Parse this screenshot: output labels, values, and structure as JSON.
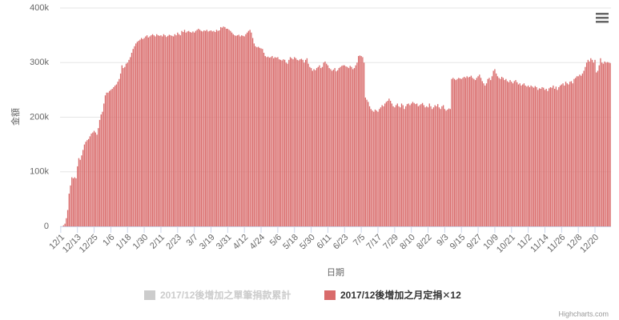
{
  "chart_data": {
    "type": "bar",
    "x_label": "日期",
    "y_label": "金額",
    "credits": "Highcharts.com",
    "grid": true,
    "ylim": [
      0,
      400000
    ],
    "yticks": [
      {
        "value": 0,
        "label": "0"
      },
      {
        "value": 100000,
        "label": "100k"
      },
      {
        "value": 200000,
        "label": "200k"
      },
      {
        "value": 300000,
        "label": "300k"
      },
      {
        "value": 400000,
        "label": "400k"
      }
    ],
    "categories": [
      "12/1",
      null,
      null,
      null,
      null,
      null,
      null,
      null,
      null,
      null,
      null,
      null,
      "12/13",
      null,
      null,
      null,
      null,
      null,
      null,
      null,
      null,
      null,
      null,
      null,
      "12/25",
      null,
      null,
      null,
      null,
      null,
      null,
      null,
      null,
      null,
      null,
      null,
      "1/6",
      null,
      null,
      null,
      null,
      null,
      null,
      null,
      null,
      null,
      null,
      null,
      "1/18",
      null,
      null,
      null,
      null,
      null,
      null,
      null,
      null,
      null,
      null,
      null,
      "1/30",
      null,
      null,
      null,
      null,
      null,
      null,
      null,
      null,
      null,
      null,
      null,
      "2/11",
      null,
      null,
      null,
      null,
      null,
      null,
      null,
      null,
      null,
      null,
      null,
      "2/23",
      null,
      null,
      null,
      null,
      null,
      null,
      null,
      null,
      null,
      null,
      null,
      "3/7",
      null,
      null,
      null,
      null,
      null,
      null,
      null,
      null,
      null,
      null,
      null,
      "3/19",
      null,
      null,
      null,
      null,
      null,
      null,
      null,
      null,
      null,
      null,
      null,
      "3/31",
      null,
      null,
      null,
      null,
      null,
      null,
      null,
      null,
      null,
      null,
      null,
      "4/12",
      null,
      null,
      null,
      null,
      null,
      null,
      null,
      null,
      null,
      null,
      null,
      "4/24",
      null,
      null,
      null,
      null,
      null,
      null,
      null,
      null,
      null,
      null,
      null,
      "5/6",
      null,
      null,
      null,
      null,
      null,
      null,
      null,
      null,
      null,
      null,
      null,
      "5/18",
      null,
      null,
      null,
      null,
      null,
      null,
      null,
      null,
      null,
      null,
      null,
      "5/30",
      null,
      null,
      null,
      null,
      null,
      null,
      null,
      null,
      null,
      null,
      null,
      "6/11",
      null,
      null,
      null,
      null,
      null,
      null,
      null,
      null,
      null,
      null,
      null,
      "6/23",
      null,
      null,
      null,
      null,
      null,
      null,
      null,
      null,
      null,
      null,
      null,
      "7/5",
      null,
      null,
      null,
      null,
      null,
      null,
      null,
      null,
      null,
      null,
      null,
      "7/17",
      null,
      null,
      null,
      null,
      null,
      null,
      null,
      null,
      null,
      null,
      null,
      "7/29",
      null,
      null,
      null,
      null,
      null,
      null,
      null,
      null,
      null,
      null,
      null,
      "8/10",
      null,
      null,
      null,
      null,
      null,
      null,
      null,
      null,
      null,
      null,
      null,
      "8/22",
      null,
      null,
      null,
      null,
      null,
      null,
      null,
      null,
      null,
      null,
      null,
      "9/3",
      null,
      null,
      null,
      null,
      null,
      null,
      null,
      null,
      null,
      null,
      null,
      "9/15",
      null,
      null,
      null,
      null,
      null,
      null,
      null,
      null,
      null,
      null,
      null,
      "9/27",
      null,
      null,
      null,
      null,
      null,
      null,
      null,
      null,
      null,
      null,
      null,
      "10/9",
      null,
      null,
      null,
      null,
      null,
      null,
      null,
      null,
      null,
      null,
      null,
      "10/21",
      null,
      null,
      null,
      null,
      null,
      null,
      null,
      null,
      null,
      null,
      null,
      "11/2",
      null,
      null,
      null,
      null,
      null,
      null,
      null,
      null,
      null,
      null,
      null,
      "11/14",
      null,
      null,
      null,
      null,
      null,
      null,
      null,
      null,
      null,
      null,
      null,
      "11/26",
      null,
      null,
      null,
      null,
      null,
      null,
      null,
      null,
      null,
      null,
      null,
      "12/8",
      null,
      null,
      null,
      null,
      null,
      null,
      null,
      null,
      null,
      null,
      null,
      "12/20",
      null,
      null,
      null,
      null,
      null,
      null,
      null,
      null,
      null,
      null,
      null
    ],
    "series": [
      {
        "name": "2017/12後增加之單筆捐款累計",
        "color": "#cccccc",
        "visible": false
      },
      {
        "name": "2017/12後增加之月定捐✕12",
        "color": "#d96b6b",
        "visible": true,
        "values": [
          0,
          0,
          2000,
          5000,
          15000,
          30000,
          60000,
          75000,
          90000,
          88000,
          90000,
          88000,
          110000,
          125000,
          122000,
          130000,
          140000,
          150000,
          155000,
          158000,
          160000,
          165000,
          170000,
          172000,
          175000,
          172000,
          168000,
          180000,
          195000,
          205000,
          210000,
          225000,
          240000,
          245000,
          245000,
          248000,
          250000,
          252000,
          255000,
          258000,
          260000,
          265000,
          270000,
          280000,
          295000,
          290000,
          292000,
          298000,
          300000,
          305000,
          310000,
          318000,
          325000,
          330000,
          335000,
          338000,
          340000,
          342000,
          345000,
          343000,
          345000,
          348000,
          350000,
          346000,
          348000,
          350000,
          352000,
          350000,
          348000,
          352000,
          350000,
          349000,
          350000,
          348000,
          352000,
          350000,
          347000,
          349000,
          351000,
          350000,
          349000,
          348000,
          352000,
          350000,
          355000,
          352000,
          350000,
          358000,
          356000,
          360000,
          355000,
          357000,
          358000,
          356000,
          355000,
          357000,
          355000,
          358000,
          360000,
          362000,
          360000,
          358000,
          357000,
          359000,
          358000,
          360000,
          357000,
          358000,
          359000,
          357000,
          358000,
          356000,
          360000,
          358000,
          359000,
          365000,
          364000,
          366000,
          365000,
          362000,
          362000,
          360000,
          358000,
          355000,
          352000,
          350000,
          349000,
          350000,
          351000,
          348000,
          350000,
          349000,
          348000,
          352000,
          355000,
          358000,
          360000,
          355000,
          345000,
          335000,
          330000,
          328000,
          329000,
          327000,
          326000,
          325000,
          318000,
          312000,
          310000,
          311000,
          309000,
          310000,
          312000,
          308000,
          310000,
          309000,
          310000,
          306000,
          305000,
          304000,
          306000,
          305000,
          300000,
          298000,
          305000,
          310000,
          308000,
          306000,
          310000,
          308000,
          305000,
          304000,
          306000,
          307000,
          305000,
          300000,
          305000,
          308000,
          298000,
          292000,
          290000,
          285000,
          288000,
          286000,
          290000,
          292000,
          295000,
          290000,
          292000,
          300000,
          302000,
          298000,
          295000,
          290000,
          288000,
          285000,
          287000,
          290000,
          284000,
          286000,
          290000,
          292000,
          294000,
          295000,
          295000,
          293000,
          292000,
          290000,
          294000,
          292000,
          288000,
          290000,
          295000,
          300000,
          312000,
          313000,
          312000,
          310000,
          300000,
          236000,
          232000,
          228000,
          220000,
          215000,
          212000,
          210000,
          214000,
          212000,
          210000,
          215000,
          218000,
          222000,
          220000,
          225000,
          228000,
          230000,
          234000,
          230000,
          225000,
          220000,
          218000,
          222000,
          225000,
          220000,
          218000,
          225000,
          222000,
          215000,
          220000,
          224000,
          225000,
          222000,
          225000,
          228000,
          226000,
          224000,
          225000,
          220000,
          222000,
          224000,
          226000,
          222000,
          218000,
          220000,
          218000,
          225000,
          220000,
          215000,
          218000,
          222000,
          220000,
          224000,
          218000,
          215000,
          220000,
          222000,
          215000,
          212000,
          214000,
          216000,
          215000,
          270000,
          272000,
          270000,
          268000,
          270000,
          272000,
          271000,
          270000,
          272000,
          274000,
          272000,
          275000,
          273000,
          274000,
          276000,
          272000,
          270000,
          268000,
          272000,
          275000,
          278000,
          272000,
          266000,
          262000,
          258000,
          262000,
          270000,
          272000,
          268000,
          275000,
          285000,
          288000,
          280000,
          275000,
          272000,
          270000,
          274000,
          272000,
          268000,
          270000,
          266000,
          264000,
          268000,
          265000,
          262000,
          266000,
          268000,
          264000,
          260000,
          262000,
          258000,
          260000,
          262000,
          258000,
          256000,
          258000,
          255000,
          258000,
          256000,
          254000,
          257000,
          255000,
          250000,
          253000,
          252000,
          255000,
          254000,
          250000,
          252000,
          248000,
          253000,
          255000,
          254000,
          258000,
          252000,
          256000,
          250000,
          255000,
          258000,
          260000,
          262000,
          258000,
          265000,
          262000,
          260000,
          265000,
          266000,
          262000,
          270000,
          272000,
          275000,
          275000,
          278000,
          276000,
          280000,
          285000,
          292000,
          300000,
          305000,
          302000,
          308000,
          305000,
          300000,
          305000,
          282000,
          285000,
          295000,
          308000,
          300000,
          298000,
          302000,
          300000,
          301000,
          300000,
          299000
        ]
      }
    ]
  }
}
